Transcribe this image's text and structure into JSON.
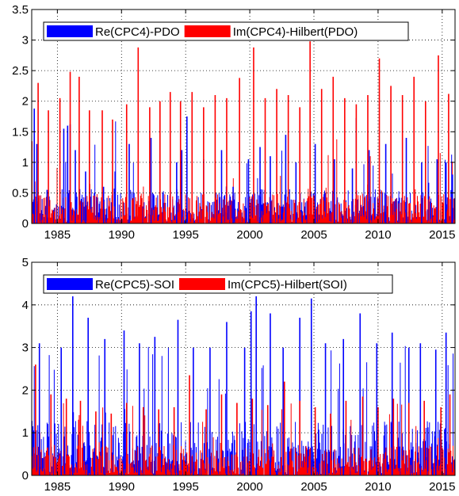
{
  "chart_data": [
    {
      "type": "bar",
      "title": "",
      "xlabel": "",
      "ylabel": "",
      "xlim": [
        1983,
        2016
      ],
      "ylim": [
        0,
        3.5
      ],
      "yticks": [
        "0",
        "0.5",
        "1",
        "1.5",
        "2",
        "2.5",
        "3",
        "3.5"
      ],
      "xticks": [
        "1985",
        "1990",
        "1995",
        "2000",
        "2005",
        "2010",
        "2015"
      ],
      "grid": true,
      "legend_position": "top-left",
      "colors": {
        "Re(CPC4)-PDO": "#0000ff",
        "Im(CPC4)-Hilbert(PDO)": "#ff0000"
      },
      "series": [
        {
          "name": "Re(CPC4)-PDO",
          "x": [
            1983.2,
            1983.4,
            1984.2,
            1985.5,
            1985.8,
            1986.0,
            1986.4,
            1987.2,
            1988.6,
            1989.5,
            1990.6,
            1992.3,
            1994.3,
            1994.7,
            1995.1,
            1996.4,
            1997.8,
            1998.7,
            1999.9,
            2000.8,
            2001.6,
            2002.8,
            2003.6,
            2005.1,
            2006.6,
            2008.0,
            2009.3,
            2010.6,
            2012.2,
            2013.4,
            2014.6,
            2015.3,
            2015.8
          ],
          "values": [
            1.88,
            1.3,
            0.55,
            1.55,
            1.6,
            1.62,
            1.2,
            0.85,
            0.6,
            0.85,
            1.3,
            1.4,
            1.0,
            1.2,
            1.75,
            1.05,
            1.2,
            0.6,
            1.05,
            1.25,
            1.1,
            1.45,
            1.0,
            1.3,
            1.05,
            0.9,
            1.2,
            1.3,
            1.4,
            1.0,
            1.05,
            1.0,
            0.8
          ]
        },
        {
          "name": "Im(CPC4)-Hilbert(PDO)",
          "x": [
            1983.5,
            1984.3,
            1985.2,
            1986.0,
            1986.7,
            1987.5,
            1988.5,
            1989.3,
            1990.4,
            1991.3,
            1992.2,
            1993.0,
            1993.8,
            1994.6,
            1995.5,
            1996.4,
            1997.3,
            1998.2,
            1999.2,
            2000.3,
            2001.2,
            2002.1,
            2003.0,
            2003.9,
            2004.7,
            2005.6,
            2006.5,
            2007.4,
            2008.3,
            2009.2,
            2010.1,
            2011.0,
            2011.9,
            2012.8,
            2013.7,
            2014.7,
            2015.5
          ],
          "values": [
            2.3,
            1.85,
            2.05,
            2.48,
            2.4,
            1.85,
            1.85,
            1.7,
            1.95,
            2.88,
            1.9,
            2.0,
            2.15,
            2.0,
            2.15,
            1.9,
            2.1,
            2.05,
            2.38,
            2.88,
            2.05,
            2.2,
            2.1,
            1.9,
            2.98,
            2.2,
            2.4,
            2.05,
            1.95,
            2.1,
            2.7,
            2.25,
            2.1,
            2.4,
            2.0,
            2.75,
            2.12
          ]
        }
      ]
    },
    {
      "type": "bar",
      "title": "",
      "xlabel": "",
      "ylabel": "",
      "xlim": [
        1983,
        2016
      ],
      "ylim": [
        0,
        5
      ],
      "yticks": [
        "0",
        "1",
        "2",
        "3",
        "4",
        "5"
      ],
      "xticks": [
        "1985",
        "1990",
        "1995",
        "2000",
        "2005",
        "2010",
        "2015"
      ],
      "grid": true,
      "legend_position": "top-left",
      "colors": {
        "Re(CPC5)-SOI": "#0000ff",
        "Im(CPC5)-Hilbert(SOI)": "#ff0000"
      },
      "series": [
        {
          "name": "Re(CPC5)-SOI",
          "x": [
            1983.6,
            1985.3,
            1986.2,
            1987.4,
            1988.7,
            1990.2,
            1991.4,
            1992.6,
            1994.4,
            1995.6,
            1996.9,
            1998.2,
            1999.6,
            2000.1,
            2000.5,
            2001.6,
            2002.6,
            2003.9,
            2004.8,
            2005.9,
            2007.3,
            2008.6,
            2009.9,
            2011.1,
            2012.4,
            2013.3,
            2014.5,
            2015.3
          ],
          "values": [
            3.1,
            3.0,
            4.2,
            3.7,
            3.2,
            3.4,
            3.1,
            3.25,
            3.65,
            3.0,
            3.0,
            3.6,
            3.0,
            3.85,
            4.2,
            3.8,
            3.0,
            3.7,
            4.15,
            3.1,
            3.2,
            3.8,
            3.1,
            3.35,
            3.0,
            3.1,
            2.95,
            3.35
          ]
        },
        {
          "name": "Im(CPC5)-Hilbert(SOI)",
          "x": [
            1983.3,
            1984.5,
            1985.7,
            1986.8,
            1988.0,
            1989.2,
            1990.4,
            1991.7,
            1992.9,
            1994.1,
            1995.3,
            1996.6,
            1997.8,
            1999.0,
            2000.2,
            2001.4,
            2002.7,
            2003.9,
            2005.1,
            2006.3,
            2007.5,
            2008.8,
            2010.0,
            2011.2,
            2012.4,
            2013.6,
            2014.9,
            2015.6
          ],
          "values": [
            2.6,
            1.9,
            1.8,
            1.75,
            1.5,
            1.45,
            1.7,
            1.6,
            1.55,
            1.6,
            2.35,
            1.55,
            1.9,
            1.7,
            1.8,
            1.65,
            2.2,
            1.75,
            1.6,
            1.45,
            1.75,
            1.85,
            1.6,
            1.8,
            1.7,
            1.75,
            1.6,
            1.9
          ]
        }
      ]
    }
  ]
}
